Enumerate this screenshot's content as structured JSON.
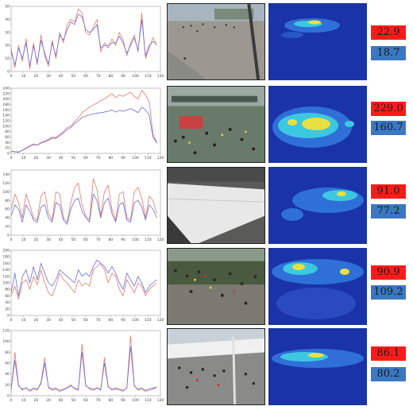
{
  "colors": {
    "ground_truth_line": "#e07a6a",
    "prediction_line": "#6b6bd8",
    "ground_truth_badge": "#ff1a1a",
    "prediction_badge": "#3a78c4",
    "heatmap_background": "#1a33a8"
  },
  "chart_data": [
    {
      "type": "line",
      "x": [
        0,
        3,
        6,
        9,
        12,
        15,
        18,
        21,
        24,
        27,
        30,
        33,
        36,
        39,
        42,
        45,
        48,
        51,
        54,
        57,
        60,
        63,
        66,
        69,
        72,
        75,
        78,
        81,
        84,
        87,
        90,
        93,
        96,
        99,
        102,
        105,
        108,
        111,
        114,
        117
      ],
      "xlim": [
        0,
        120
      ],
      "ylim": [
        0,
        50
      ],
      "yticks": [
        0,
        10,
        20,
        30,
        40,
        50
      ],
      "xticks": [
        0,
        10,
        20,
        30,
        40,
        50,
        60,
        70,
        80,
        90,
        100,
        110,
        120
      ],
      "series": [
        {
          "values": [
            18,
            3,
            20,
            8,
            25,
            2,
            22,
            5,
            28,
            12,
            4,
            24,
            10,
            30,
            22,
            36,
            40,
            38,
            48,
            45,
            30,
            28,
            34,
            40,
            15,
            22,
            18,
            25,
            20,
            30,
            24,
            12,
            22,
            28,
            15,
            45,
            10,
            18,
            26,
            20
          ]
        },
        {
          "values": [
            15,
            5,
            18,
            10,
            22,
            4,
            20,
            7,
            24,
            14,
            6,
            22,
            12,
            28,
            24,
            32,
            38,
            36,
            44,
            42,
            32,
            30,
            32,
            36,
            18,
            20,
            20,
            22,
            22,
            27,
            22,
            14,
            20,
            26,
            16,
            40,
            12,
            20,
            23,
            21
          ]
        }
      ]
    },
    {
      "type": "line",
      "x": [
        0,
        3,
        6,
        9,
        12,
        15,
        18,
        21,
        24,
        27,
        30,
        33,
        36,
        39,
        42,
        45,
        48,
        51,
        54,
        57,
        60,
        63,
        66,
        69,
        72,
        75,
        78,
        81,
        84,
        87,
        90,
        93,
        96,
        99,
        102,
        105,
        108,
        111,
        114,
        117
      ],
      "xlim": [
        0,
        120
      ],
      "ylim": [
        0,
        240
      ],
      "yticks": [
        0,
        20,
        40,
        60,
        80,
        100,
        120,
        140,
        160,
        180,
        200,
        220,
        240
      ],
      "xticks": [
        0,
        10,
        20,
        30,
        40,
        50,
        60,
        70,
        80,
        90,
        100,
        110,
        120
      ],
      "series": [
        {
          "values": [
            8,
            6,
            4,
            12,
            20,
            28,
            35,
            30,
            40,
            45,
            52,
            60,
            58,
            70,
            80,
            95,
            100,
            118,
            130,
            150,
            160,
            170,
            178,
            185,
            195,
            200,
            210,
            220,
            205,
            215,
            210,
            218,
            225,
            210,
            200,
            232,
            215,
            190,
            70,
            40
          ]
        },
        {
          "values": [
            8,
            6,
            5,
            11,
            18,
            26,
            32,
            30,
            38,
            42,
            48,
            56,
            55,
            65,
            75,
            88,
            95,
            110,
            120,
            132,
            138,
            142,
            145,
            148,
            150,
            152,
            155,
            160,
            152,
            158,
            155,
            160,
            165,
            158,
            150,
            170,
            160,
            140,
            60,
            38
          ]
        }
      ]
    },
    {
      "type": "line",
      "x": [
        0,
        3,
        6,
        9,
        12,
        15,
        18,
        21,
        24,
        27,
        30,
        33,
        36,
        39,
        42,
        45,
        48,
        51,
        54,
        57,
        60,
        63,
        66,
        69,
        72,
        75,
        78,
        81,
        84,
        87,
        90,
        93,
        96,
        99,
        102,
        105,
        108,
        111,
        114,
        117
      ],
      "xlim": [
        0,
        120
      ],
      "ylim": [
        0,
        150
      ],
      "yticks": [
        0,
        20,
        40,
        60,
        80,
        100,
        120,
        140
      ],
      "xticks": [
        0,
        10,
        20,
        30,
        40,
        50,
        60,
        70,
        80,
        90,
        100,
        110,
        120
      ],
      "series": [
        {
          "values": [
            60,
            95,
            75,
            40,
            95,
            70,
            40,
            35,
            90,
            100,
            50,
            35,
            100,
            95,
            40,
            30,
            75,
            110,
            120,
            70,
            45,
            35,
            130,
            105,
            45,
            100,
            115,
            60,
            35,
            95,
            100,
            40,
            35,
            100,
            110,
            85,
            40,
            90,
            80,
            50
          ]
        },
        {
          "values": [
            45,
            70,
            60,
            30,
            70,
            55,
            35,
            30,
            65,
            70,
            40,
            30,
            75,
            70,
            35,
            25,
            60,
            80,
            85,
            55,
            40,
            30,
            95,
            80,
            40,
            75,
            85,
            50,
            30,
            70,
            75,
            35,
            30,
            75,
            80,
            65,
            35,
            70,
            60,
            40
          ]
        }
      ]
    },
    {
      "type": "line",
      "x": [
        0,
        3,
        6,
        9,
        12,
        15,
        18,
        21,
        24,
        27,
        30,
        33,
        36,
        39,
        42,
        45,
        48,
        51,
        54,
        57,
        60,
        63,
        66,
        69,
        72,
        75,
        78,
        81,
        84,
        87,
        90,
        93,
        96,
        99,
        102,
        105,
        108,
        111,
        114,
        117
      ],
      "xlim": [
        0,
        120
      ],
      "ylim": [
        0,
        200
      ],
      "yticks": [
        0,
        20,
        40,
        60,
        80,
        100,
        120,
        140,
        160,
        180,
        200
      ],
      "xticks": [
        0,
        10,
        20,
        30,
        40,
        50,
        60,
        70,
        80,
        90,
        100,
        110,
        120
      ],
      "series": [
        {
          "values": [
            60,
            90,
            50,
            100,
            110,
            80,
            120,
            95,
            140,
            100,
            70,
            60,
            90,
            130,
            110,
            100,
            85,
            70,
            110,
            90,
            100,
            90,
            140,
            150,
            160,
            140,
            100,
            130,
            120,
            80,
            60,
            110,
            90,
            70,
            100,
            90,
            60,
            80,
            90,
            100
          ]
        },
        {
          "values": [
            70,
            130,
            60,
            120,
            140,
            100,
            150,
            110,
            160,
            130,
            100,
            90,
            110,
            140,
            130,
            120,
            110,
            100,
            140,
            120,
            130,
            120,
            150,
            170,
            160,
            150,
            130,
            150,
            130,
            100,
            80,
            130,
            110,
            90,
            120,
            100,
            70,
            90,
            100,
            110
          ]
        }
      ]
    },
    {
      "type": "line",
      "x": [
        0,
        3,
        6,
        9,
        12,
        15,
        18,
        21,
        24,
        27,
        30,
        33,
        36,
        39,
        42,
        45,
        48,
        51,
        54,
        57,
        60,
        63,
        66,
        69,
        72,
        75,
        78,
        81,
        84,
        87,
        90,
        93,
        96,
        99,
        102,
        105,
        108,
        111,
        114,
        117
      ],
      "xlim": [
        0,
        120
      ],
      "ylim": [
        0,
        120
      ],
      "yticks": [
        0,
        20,
        40,
        60,
        80,
        100,
        120
      ],
      "xticks": [
        0,
        10,
        20,
        30,
        40,
        50,
        60,
        70,
        80,
        90,
        100,
        110,
        120
      ],
      "series": [
        {
          "values": [
            10,
            80,
            20,
            10,
            15,
            8,
            12,
            10,
            25,
            70,
            15,
            10,
            12,
            8,
            10,
            15,
            20,
            12,
            10,
            95,
            20,
            12,
            10,
            15,
            10,
            70,
            18,
            10,
            12,
            10,
            8,
            15,
            110,
            20,
            10,
            12,
            8,
            10,
            12,
            15
          ]
        },
        {
          "values": [
            12,
            65,
            18,
            12,
            14,
            10,
            14,
            12,
            22,
            60,
            16,
            12,
            14,
            10,
            12,
            14,
            18,
            14,
            12,
            80,
            18,
            14,
            12,
            14,
            12,
            60,
            16,
            12,
            14,
            12,
            10,
            14,
            90,
            18,
            12,
            14,
            10,
            12,
            14,
            16
          ]
        }
      ]
    }
  ],
  "counts": [
    {
      "ground_truth": "22.9",
      "prediction": "18.7"
    },
    {
      "ground_truth": "229.0",
      "prediction": "160.7"
    },
    {
      "ground_truth": "91.0",
      "prediction": "77.2"
    },
    {
      "ground_truth": "90.9",
      "prediction": "109.2"
    },
    {
      "ground_truth": "86.1",
      "prediction": "80.2"
    }
  ]
}
